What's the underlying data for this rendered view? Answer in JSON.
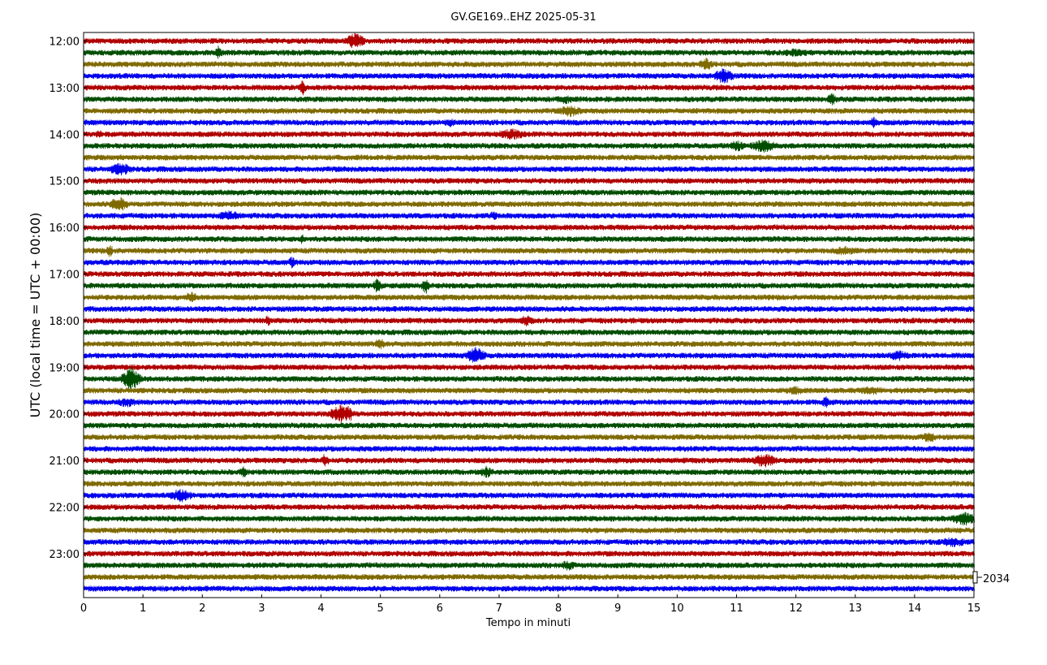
{
  "chart_data": {
    "type": "line",
    "title": "GV.GE169..EHZ 2025-05-31",
    "xlabel": "Tempo in minuti",
    "ylabel": "UTC (local time = UTC + 00:00)",
    "xlim": [
      0,
      15
    ],
    "x_ticks": [
      "0",
      "1",
      "2",
      "3",
      "4",
      "5",
      "6",
      "7",
      "8",
      "9",
      "10",
      "11",
      "12",
      "13",
      "14",
      "15"
    ],
    "y_ticks": [
      "12:00",
      "13:00",
      "14:00",
      "15:00",
      "16:00",
      "17:00",
      "18:00",
      "19:00",
      "20:00",
      "21:00",
      "22:00",
      "23:00"
    ],
    "trace_start": "12:00",
    "trace_end": "23:45",
    "trace_minutes": 15,
    "trace_count": 48,
    "trace_colors": [
      "#b00000",
      "#004d00",
      "#7f6a00",
      "#0000ee"
    ],
    "scale_label": "2034",
    "grid": false,
    "legend": "none"
  }
}
